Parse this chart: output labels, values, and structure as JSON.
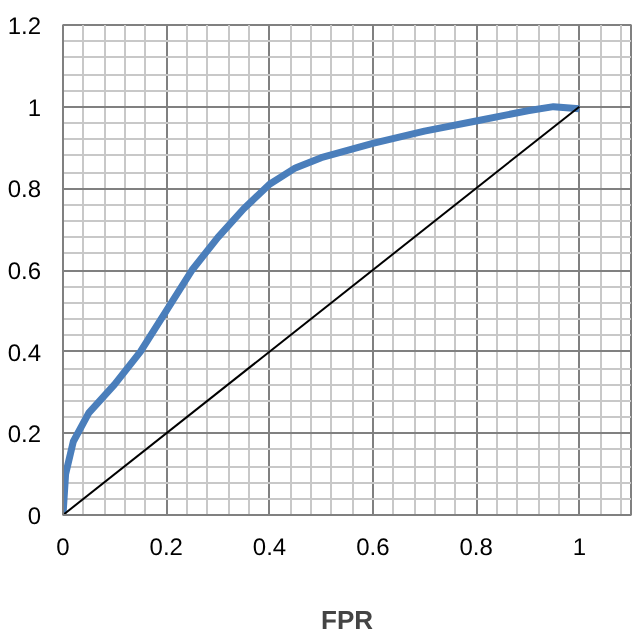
{
  "chart_data": {
    "type": "line",
    "xlabel": "FPR",
    "xlim": [
      0,
      1.1
    ],
    "ylim": [
      0,
      1.2
    ],
    "xticks": [
      0,
      0.2,
      0.4,
      0.6,
      0.8,
      1
    ],
    "yticks": [
      0,
      0.2,
      0.4,
      0.6,
      0.8,
      1,
      1.2
    ],
    "grid": true,
    "series": [
      {
        "color": "#4a7ebb",
        "x": [
          0,
          0.005,
          0.02,
          0.05,
          0.1,
          0.15,
          0.2,
          0.25,
          0.3,
          0.35,
          0.4,
          0.45,
          0.5,
          0.6,
          0.7,
          0.8,
          0.9,
          0.95,
          1
        ],
        "values": [
          0,
          0.1,
          0.18,
          0.25,
          0.32,
          0.4,
          0.5,
          0.6,
          0.68,
          0.75,
          0.81,
          0.85,
          0.875,
          0.91,
          0.94,
          0.965,
          0.99,
          1.0,
          0.995
        ]
      },
      {
        "color": "#000000",
        "x": [
          0,
          1
        ],
        "values": [
          0,
          1
        ]
      }
    ]
  }
}
